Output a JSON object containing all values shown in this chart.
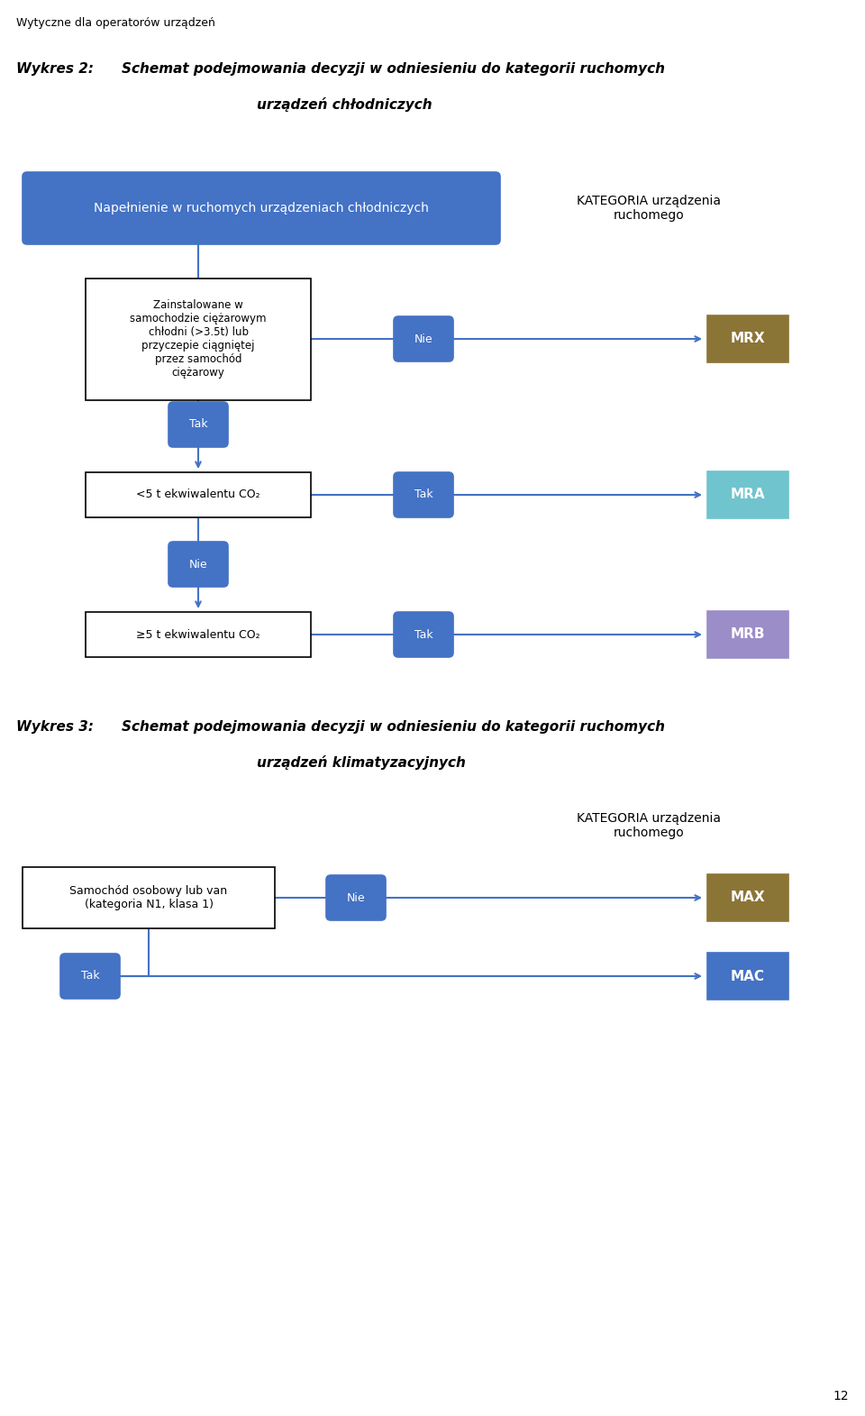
{
  "page_label": "Wytyczne dla operatorów urządzeń",
  "page_number": "12",
  "blue_box_text": "Napełnienie w ruchomych urządzeniach chłodniczych",
  "blue_box_color": "#4472C4",
  "tak_color": "#4472C4",
  "nie_color": "#4472C4",
  "mrx_color": "#8B7536",
  "mra_color": "#70C4CE",
  "mrb_color": "#9B8DC8",
  "max_color": "#8B7536",
  "mac_color": "#4472C4",
  "co2_box1_text": "<5 t ekwiwalentu CO₂",
  "co2_box2_text": "≥5 t ekwiwalentu CO₂",
  "arrow_color": "#4472C4",
  "text_color_dark": "#000000",
  "text_color_white": "#ffffff",
  "bg_color": "#ffffff"
}
